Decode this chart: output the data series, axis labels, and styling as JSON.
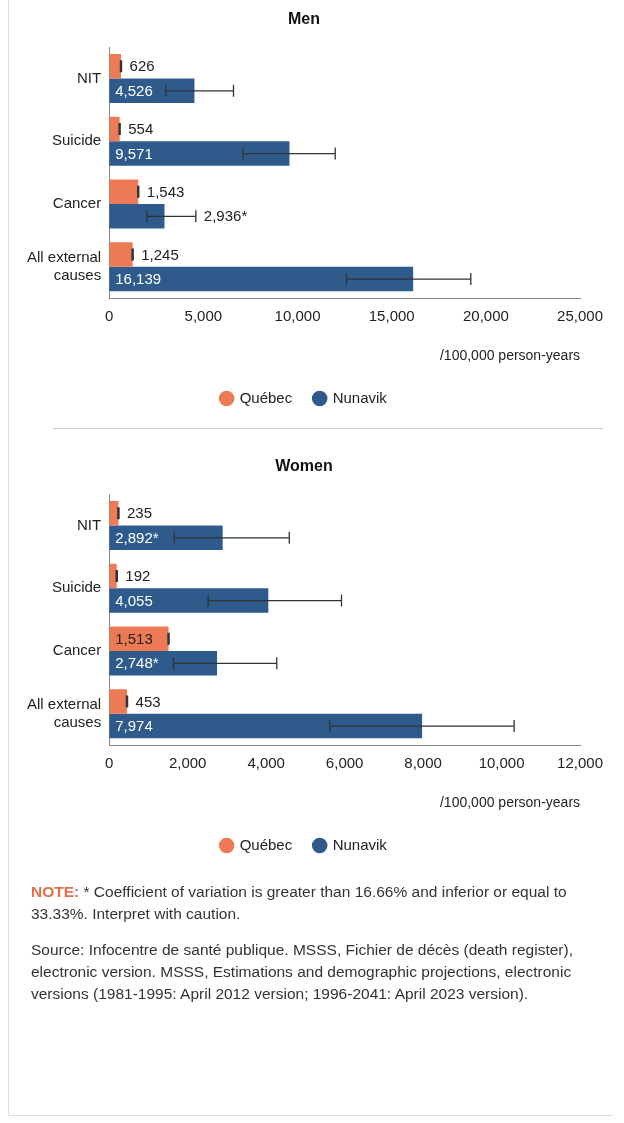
{
  "chart_data": [
    {
      "type": "bar",
      "orientation": "horizontal",
      "title": "Men",
      "xlabel": "/100,000 person-years",
      "categories": [
        "NIT",
        "Suicide",
        "Cancer",
        "All external causes"
      ],
      "series": [
        {
          "name": "Québec",
          "color": "#eb7a55",
          "values": [
            626,
            554,
            1543,
            1245
          ],
          "errors": [
            30,
            30,
            30,
            30
          ],
          "value_labels": [
            "626",
            "554",
            "1,543",
            "1,245"
          ]
        },
        {
          "name": "Nunavik",
          "color": "#2e5a8c",
          "values": [
            4526,
            9571,
            2936,
            16139
          ],
          "errors": [
            [
              3000,
              6600
            ],
            [
              7100,
              12000
            ],
            [
              2000,
              4600
            ],
            [
              12600,
              19200
            ]
          ],
          "value_labels": [
            "4,526",
            "9,571",
            "2,936*",
            "16,139"
          ]
        }
      ],
      "xlim": [
        0,
        25000
      ],
      "xticks": [
        0,
        {
          "value": 5000,
          "label": "5,000"
        },
        {
          "value": 10000,
          "label": "10,000"
        },
        {
          "value": 15000,
          "label": "15,000"
        },
        {
          "value": 20000,
          "label": "20,000"
        },
        {
          "value": 25000,
          "label": "25,000"
        }
      ],
      "grid": false,
      "legend": "bottom"
    },
    {
      "type": "bar",
      "orientation": "horizontal",
      "title": "Women",
      "xlabel": "/100,000 person-years",
      "categories": [
        "NIT",
        "Suicide",
        "Cancer",
        "All external causes"
      ],
      "series": [
        {
          "name": "Québec",
          "color": "#eb7a55",
          "values": [
            235,
            192,
            1513,
            453
          ],
          "errors": [
            15,
            15,
            15,
            15
          ],
          "value_labels": [
            "235",
            "192",
            "1,513",
            "453"
          ]
        },
        {
          "name": "Nunavik",
          "color": "#2e5a8c",
          "values": [
            2892,
            4055,
            2748,
            7974
          ],
          "errors": [
            [
              1660,
              4590
            ],
            [
              2520,
              5920
            ],
            [
              1640,
              4270
            ],
            [
              5620,
              10320
            ]
          ],
          "value_labels": [
            "2,892*",
            "4,055",
            "2,748*",
            "7,974"
          ]
        }
      ],
      "xlim": [
        0,
        12000
      ],
      "xticks": [
        0,
        {
          "value": 2000,
          "label": "2,000"
        },
        {
          "value": 4000,
          "label": "4,000"
        },
        {
          "value": 6000,
          "label": "6,000"
        },
        {
          "value": 8000,
          "label": "8,000"
        },
        {
          "value": 10000,
          "label": "10,000"
        },
        {
          "value": 12000,
          "label": "12,000"
        }
      ],
      "grid": false,
      "legend": "bottom",
      "annotations": [
        "NOTE: * Coefficient of variation is greater than 16.66% and inferior or equal to 33.33%. Interpret with caution.",
        "Source: Infocentre de santé publique. MSSS, Fichier de décès (death register), electronic version. MSSS, Estimations and demographic projections, electronic versions (1981-1995: April 2012 version; 1996-2041: April 2023 version)."
      ]
    }
  ]
}
